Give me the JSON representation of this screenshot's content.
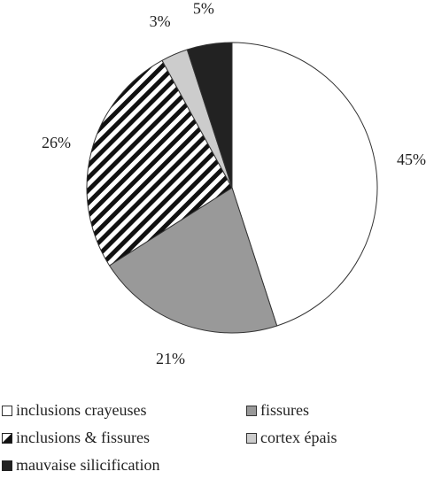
{
  "chart_data": {
    "type": "pie",
    "title": "",
    "slices": [
      {
        "label": "inclusions crayeuses",
        "value": 45,
        "value_label": "45%",
        "color": "#ffffff",
        "pattern": "none"
      },
      {
        "label": "fissures",
        "value": 21,
        "value_label": "21%",
        "color": "#999999",
        "pattern": "none"
      },
      {
        "label": "inclusions & fissures",
        "value": 26,
        "value_label": "26%",
        "color": "#ffffff",
        "pattern": "diagonal-stripes"
      },
      {
        "label": "cortex épais",
        "value": 3,
        "value_label": "3%",
        "color": "#cccccc",
        "pattern": "none"
      },
      {
        "label": "mauvaise silicification",
        "value": 5,
        "value_label": "5%",
        "color": "#222222",
        "pattern": "none"
      }
    ],
    "start_angle": "12 o'clock",
    "direction": "clockwise",
    "legend_position": "bottom"
  }
}
